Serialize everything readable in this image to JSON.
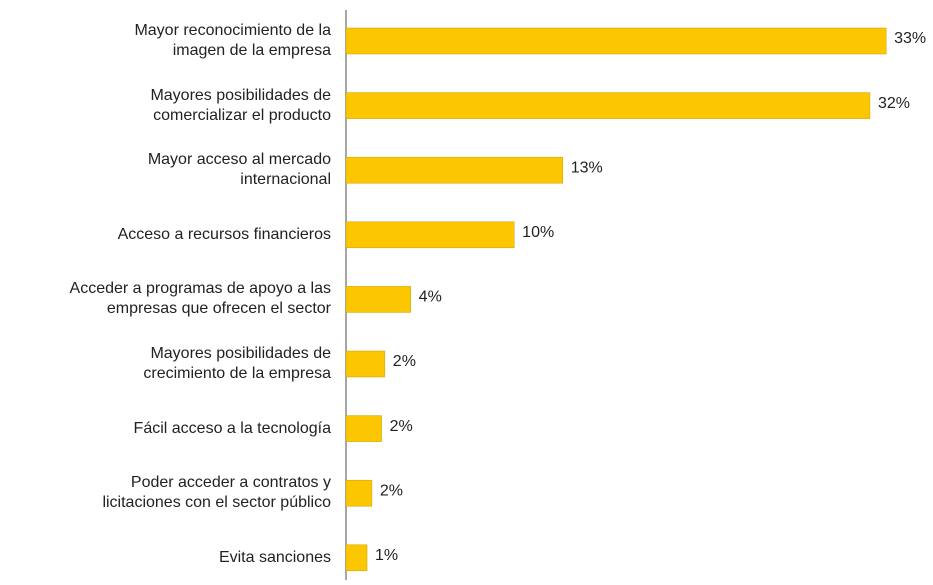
{
  "chart_data": {
    "type": "bar",
    "orientation": "horizontal",
    "color": "#fcc600",
    "categories": [
      "Mayor reconocimiento de la\nimagen de la empresa",
      "Mayores posibilidades de\ncomercializar el producto",
      "Mayor acceso al mercado\ninternacional",
      "Acceso a recursos financieros",
      "Acceder a programas de apoyo a las\nempresas que ofrecen el sector",
      "Mayores posibilidades de\ncrecimiento de la empresa",
      "Fácil acceso a la tecnología",
      "Poder acceder a contratos y\nlicitaciones con el sector público",
      "Evita sanciones"
    ],
    "values": [
      33.4,
      32.4,
      13.4,
      10.4,
      4.0,
      2.4,
      2.2,
      1.6,
      1.3
    ],
    "value_labels": [
      "33%",
      "32%",
      "13%",
      "10%",
      "4%",
      "2%",
      "2%",
      "2%",
      "1%"
    ],
    "xlim": [
      0,
      35
    ]
  }
}
